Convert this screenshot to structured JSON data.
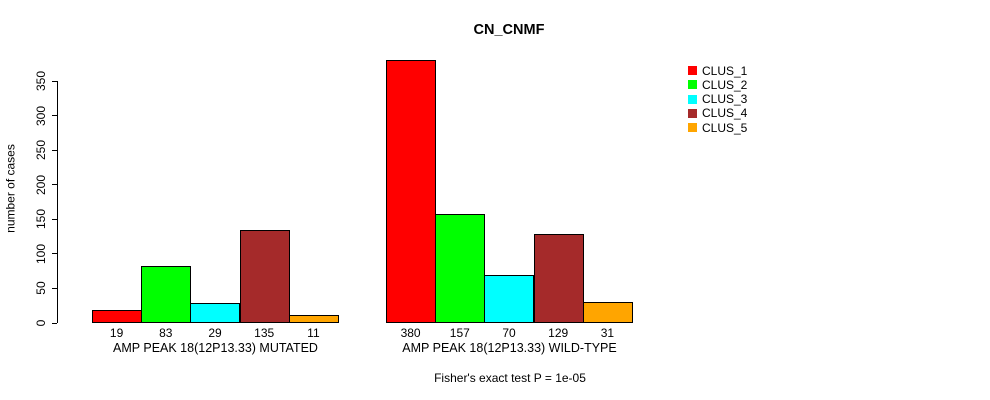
{
  "chart_data": {
    "type": "bar",
    "title": "CN_CNMF",
    "ylabel": "number of cases",
    "ylim": [
      0,
      350
    ],
    "yticks": [
      0,
      50,
      100,
      150,
      200,
      250,
      300,
      350
    ],
    "categories": [
      "AMP PEAK 18(12P13.33) MUTATED",
      "AMP PEAK 18(12P13.33) WILD-TYPE"
    ],
    "series": [
      {
        "name": "CLUS_1",
        "color": "#FF0000",
        "values": [
          19,
          380
        ]
      },
      {
        "name": "CLUS_2",
        "color": "#00FF00",
        "values": [
          83,
          157
        ]
      },
      {
        "name": "CLUS_3",
        "color": "#00FFFF",
        "values": [
          29,
          70
        ]
      },
      {
        "name": "CLUS_4",
        "color": "#A52A2A",
        "values": [
          135,
          129
        ]
      },
      {
        "name": "CLUS_5",
        "color": "#FFA500",
        "values": [
          11,
          31
        ]
      }
    ],
    "bar_value_labels": [
      [
        19,
        83,
        29,
        135,
        11
      ],
      [
        380,
        157,
        70,
        129,
        31
      ]
    ],
    "legend_position": "right",
    "grid": false,
    "footnote": "Fisher's exact test P = 1e-05"
  },
  "legend": {
    "items": [
      {
        "label": "CLUS_1",
        "color": "#FF0000"
      },
      {
        "label": "CLUS_2",
        "color": "#00FF00"
      },
      {
        "label": "CLUS_3",
        "color": "#00FFFF"
      },
      {
        "label": "CLUS_4",
        "color": "#A52A2A"
      },
      {
        "label": "CLUS_5",
        "color": "#FFA500"
      }
    ]
  }
}
